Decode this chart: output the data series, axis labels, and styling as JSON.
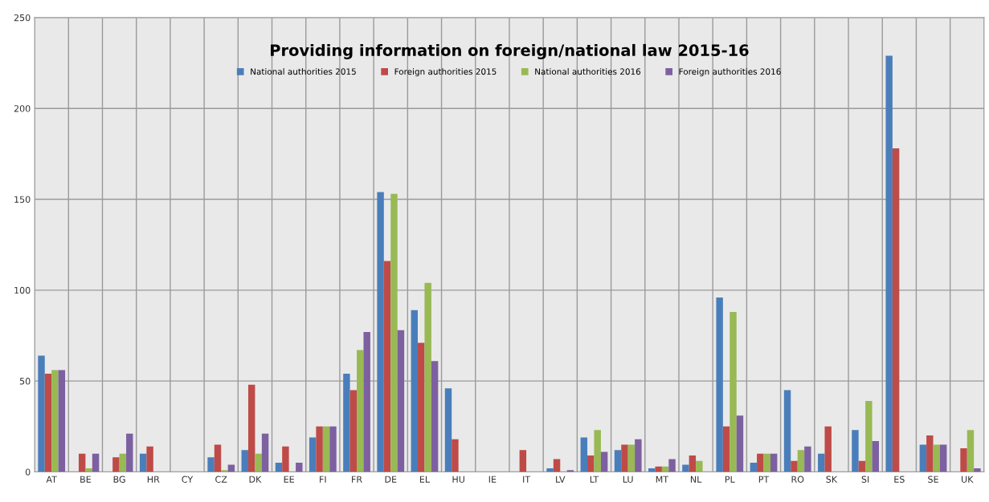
{
  "chart_data": {
    "type": "bar",
    "title": "Providing information on foreign/national law 2015-16",
    "categories": [
      "AT",
      "BE",
      "BG",
      "HR",
      "CY",
      "CZ",
      "DK",
      "EE",
      "FI",
      "FR",
      "DE",
      "EL",
      "HU",
      "IE",
      "IT",
      "LV",
      "LT",
      "LU",
      "MT",
      "NL",
      "PL",
      "PT",
      "RO",
      "SK",
      "SI",
      "ES",
      "SE",
      "UK"
    ],
    "series": [
      {
        "name": "National authorities 2015",
        "color": "#4a7ebb",
        "values": [
          64,
          0,
          0,
          10,
          0,
          8,
          12,
          5,
          19,
          54,
          154,
          89,
          46,
          0,
          0,
          2,
          19,
          12,
          2,
          4,
          96,
          5,
          45,
          10,
          23,
          229,
          15,
          0
        ]
      },
      {
        "name": "Foreign authorities 2015",
        "color": "#be4b48",
        "values": [
          54,
          10,
          8,
          14,
          0,
          15,
          48,
          14,
          25,
          45,
          116,
          71,
          18,
          0,
          12,
          7,
          9,
          15,
          3,
          9,
          25,
          10,
          6,
          25,
          6,
          178,
          20,
          13
        ]
      },
      {
        "name": "National authorities 2016",
        "color": "#98b954",
        "values": [
          56,
          2,
          10,
          0,
          0,
          1,
          10,
          0,
          25,
          67,
          153,
          104,
          0,
          0,
          0,
          0,
          23,
          15,
          3,
          6,
          88,
          10,
          12,
          0,
          39,
          0,
          15,
          23
        ]
      },
      {
        "name": "Foreign authorities 2016",
        "color": "#7d60a0",
        "values": [
          56,
          10,
          21,
          0,
          0,
          4,
          21,
          5,
          25,
          77,
          78,
          61,
          0,
          0,
          0,
          1,
          11,
          18,
          7,
          0,
          31,
          10,
          14,
          0,
          17,
          0,
          15,
          2
        ]
      }
    ],
    "ylim": [
      0,
      250
    ],
    "yticks": [
      0,
      50,
      100,
      150,
      200,
      250
    ],
    "grid": true,
    "legend": "top"
  }
}
